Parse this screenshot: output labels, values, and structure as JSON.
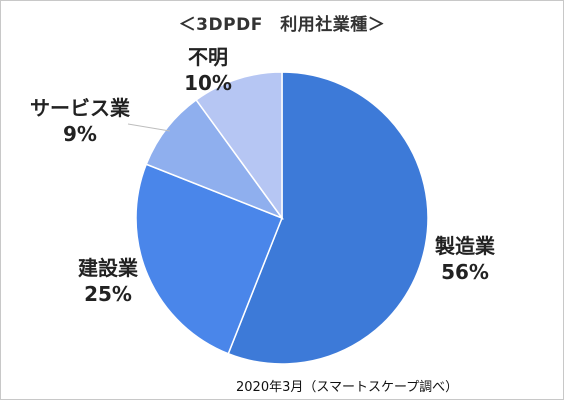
{
  "chart_data": {
    "type": "pie",
    "title": "＜3DPDF　利用社業種＞",
    "categories": [
      "製造業",
      "建設業",
      "サービス業",
      "不明"
    ],
    "values": [
      56,
      25,
      9,
      10
    ],
    "value_labels": [
      "56%",
      "25%",
      "9%",
      "10%"
    ],
    "colors": [
      "#3d7ad8",
      "#4a86ea",
      "#8fafee",
      "#b6c6f3"
    ],
    "legend": "none",
    "note": "2020年3月（スマートスケープ調べ）"
  }
}
